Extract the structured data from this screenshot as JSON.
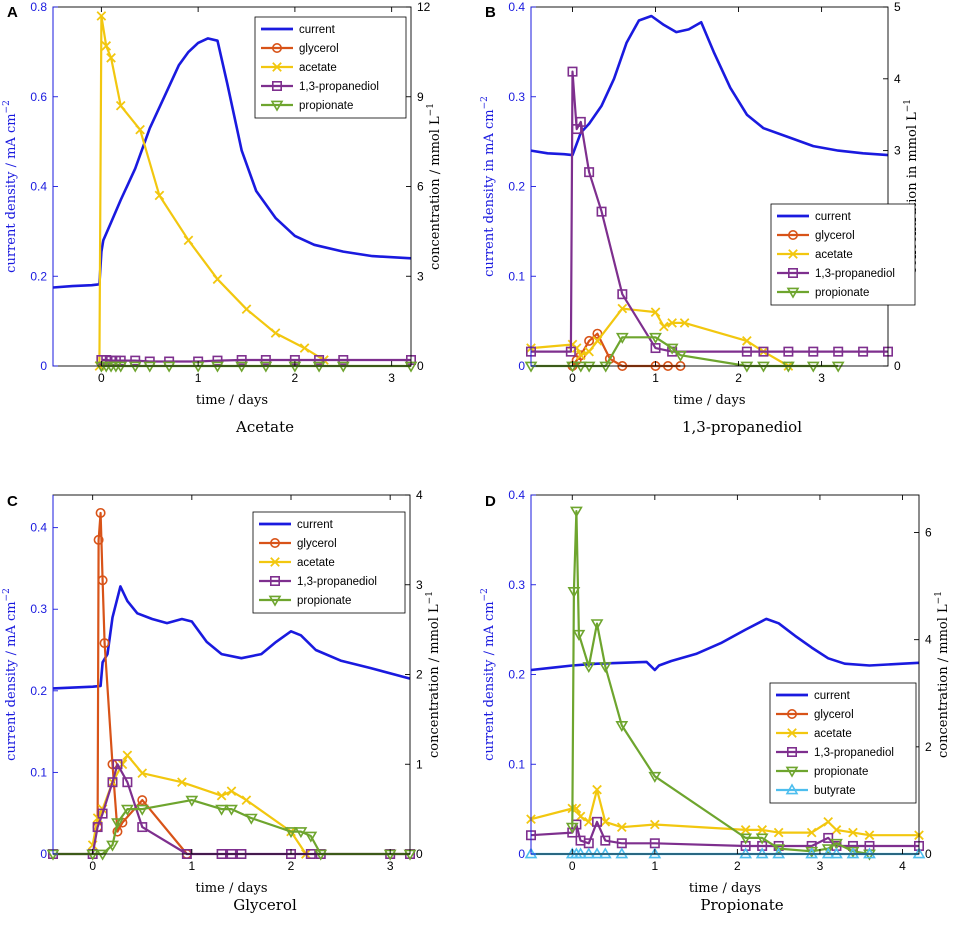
{
  "colors": {
    "current": "#1a1adf",
    "glycerol": "#d85318",
    "acetate": "#f2c70f",
    "propanediol": "#7e2f8e",
    "propionate": "#6ea52e",
    "butyrate": "#4dbeee",
    "axis_left": "#1a1adf",
    "axis_right": "#000000"
  },
  "chart_data": [
    {
      "panel": "A",
      "type": "line",
      "caption": "Acetate",
      "xlabel": "time / days",
      "ylabel_left": "current density / mA cm",
      "ylabel_left_sup": "−2",
      "ylabel_right": "concentration / mmol L",
      "ylabel_right_sup": "−1",
      "xlim": [
        -0.5,
        3.2
      ],
      "ylim_left": [
        0,
        0.8
      ],
      "ylim_right": [
        0,
        12
      ],
      "xticks": [
        0,
        1,
        2,
        3
      ],
      "yticks_left": [
        0,
        0.2,
        0.4,
        0.6,
        0.8
      ],
      "yticks_left_labels": [
        "0",
        "0.2",
        "0.4",
        "0.6",
        "0.8"
      ],
      "yticks_right": [
        0,
        3,
        6,
        9,
        12
      ],
      "yticks_right_labels": [
        "0",
        "3",
        "6",
        "9",
        "12"
      ],
      "legend": [
        "current",
        "glycerol",
        "acetate",
        "1,3-propanediol",
        "propionate"
      ],
      "legend_position": "top-right",
      "current": {
        "x": [
          -0.5,
          -0.3,
          -0.1,
          -0.02,
          0.0,
          0.02,
          0.1,
          0.2,
          0.35,
          0.5,
          0.65,
          0.8,
          0.9,
          1.0,
          1.1,
          1.2,
          1.3,
          1.45,
          1.6,
          1.8,
          2.0,
          2.2,
          2.5,
          2.8,
          3.2
        ],
        "y": [
          0.175,
          0.178,
          0.18,
          0.182,
          0.255,
          0.28,
          0.32,
          0.37,
          0.44,
          0.53,
          0.6,
          0.67,
          0.7,
          0.72,
          0.73,
          0.725,
          0.63,
          0.48,
          0.39,
          0.33,
          0.29,
          0.27,
          0.255,
          0.245,
          0.24
        ]
      },
      "series": [
        {
          "name": "acetate",
          "marker": "x",
          "x": [
            -0.02,
            0.0,
            0.05,
            0.1,
            0.2,
            0.4,
            0.6,
            0.9,
            1.2,
            1.5,
            1.8,
            2.1,
            2.3
          ],
          "y": [
            0,
            11.7,
            10.7,
            10.3,
            8.7,
            7.9,
            5.7,
            4.2,
            2.9,
            1.9,
            1.1,
            0.6,
            0.2
          ]
        },
        {
          "name": "1,3-propanediol",
          "marker": "square",
          "x": [
            0.0,
            0.05,
            0.1,
            0.15,
            0.2,
            0.35,
            0.5,
            0.7,
            1.0,
            1.2,
            1.45,
            1.7,
            2.0,
            2.25,
            2.5,
            3.2
          ],
          "y": [
            0.2,
            0.2,
            0.18,
            0.18,
            0.18,
            0.18,
            0.15,
            0.15,
            0.15,
            0.18,
            0.2,
            0.2,
            0.2,
            0.2,
            0.2,
            0.2
          ]
        },
        {
          "name": "propionate",
          "marker": "triangle-down",
          "x": [
            0.0,
            0.05,
            0.1,
            0.15,
            0.2,
            0.35,
            0.5,
            0.7,
            1.0,
            1.2,
            1.45,
            1.7,
            2.0,
            2.25,
            2.5,
            3.2
          ],
          "y": [
            0,
            0,
            0,
            0,
            0,
            0,
            0,
            0,
            0,
            0,
            0,
            0,
            0,
            0,
            0,
            0
          ]
        }
      ]
    },
    {
      "panel": "B",
      "type": "line",
      "caption": "1,3-propanediol",
      "xlabel": "time / days",
      "ylabel_left": "current density in mA cm",
      "ylabel_left_sup": "−2",
      "ylabel_right": "concentration in mmol L",
      "ylabel_right_sup": "−1",
      "xlim": [
        -0.5,
        3.8
      ],
      "ylim_left": [
        0,
        0.4
      ],
      "ylim_right": [
        0,
        5
      ],
      "xticks": [
        0,
        1,
        2,
        3
      ],
      "yticks_left": [
        0,
        0.1,
        0.2,
        0.3,
        0.4
      ],
      "yticks_left_labels": [
        "0",
        "0.1",
        "0.2",
        "0.3",
        "0.4"
      ],
      "yticks_right": [
        0,
        1,
        2,
        3,
        4,
        5
      ],
      "yticks_right_labels": [
        "0",
        "1",
        "2",
        "3",
        "4",
        "5"
      ],
      "legend": [
        "current",
        "glycerol",
        "acetate",
        "1,3-propanediol",
        "propionate"
      ],
      "legend_position": "middle-right",
      "current": {
        "x": [
          -0.5,
          -0.3,
          -0.1,
          0.0,
          0.1,
          0.2,
          0.35,
          0.5,
          0.65,
          0.8,
          0.95,
          1.1,
          1.25,
          1.4,
          1.55,
          1.7,
          1.9,
          2.1,
          2.3,
          2.6,
          2.9,
          3.2,
          3.5,
          3.8
        ],
        "y": [
          0.24,
          0.237,
          0.236,
          0.235,
          0.26,
          0.27,
          0.29,
          0.32,
          0.36,
          0.385,
          0.39,
          0.38,
          0.372,
          0.375,
          0.383,
          0.35,
          0.31,
          0.28,
          0.265,
          0.255,
          0.245,
          0.24,
          0.237,
          0.235
        ]
      },
      "series": [
        {
          "name": "glycerol",
          "marker": "circle",
          "x": [
            0.0,
            0.05,
            0.1,
            0.2,
            0.3,
            0.45,
            0.6,
            1.0,
            1.15,
            1.3
          ],
          "y": [
            0,
            0.08,
            0.15,
            0.35,
            0.45,
            0.1,
            0,
            0,
            0,
            0
          ]
        },
        {
          "name": "acetate",
          "marker": "x",
          "x": [
            -0.5,
            0.0,
            0.05,
            0.1,
            0.2,
            0.3,
            0.6,
            1.0,
            1.1,
            1.2,
            1.35,
            2.1,
            2.3,
            2.6
          ],
          "y": [
            0.25,
            0.3,
            0.25,
            0.15,
            0.2,
            0.35,
            0.8,
            0.75,
            0.55,
            0.6,
            0.6,
            0.35,
            0.2,
            0
          ]
        },
        {
          "name": "1,3-propanediol",
          "marker": "square",
          "x": [
            -0.5,
            -0.02,
            0.0,
            0.05,
            0.1,
            0.2,
            0.35,
            0.6,
            1.0,
            1.2,
            2.1,
            2.3,
            2.6,
            2.9,
            3.2,
            3.5,
            3.8
          ],
          "y": [
            0.2,
            0.2,
            4.1,
            3.3,
            3.4,
            2.7,
            2.15,
            1.0,
            0.25,
            0.2,
            0.2,
            0.2,
            0.2,
            0.2,
            0.2,
            0.2,
            0.2
          ]
        },
        {
          "name": "propionate",
          "marker": "triangle-down",
          "x": [
            -0.5,
            0.0,
            0.1,
            0.2,
            0.4,
            0.6,
            1.0,
            1.2,
            1.3,
            2.1,
            2.3,
            2.6,
            2.9,
            3.2
          ],
          "y": [
            0,
            0,
            0,
            0,
            0,
            0.4,
            0.4,
            0.25,
            0.15,
            0,
            0,
            0,
            0,
            0
          ]
        }
      ]
    },
    {
      "panel": "C",
      "type": "line",
      "caption": "Glycerol",
      "xlabel": "time / days",
      "ylabel_left": "current density / mA cm",
      "ylabel_left_sup": "−2",
      "ylabel_right": "concentration / mmol L",
      "ylabel_right_sup": "−1",
      "xlim": [
        -0.4,
        3.2
      ],
      "ylim_left": [
        0,
        0.44
      ],
      "ylim_right": [
        0,
        4
      ],
      "xticks": [
        0,
        1,
        2,
        3
      ],
      "yticks_left": [
        0,
        0.1,
        0.2,
        0.3,
        0.4
      ],
      "yticks_left_labels": [
        "0",
        "0.1",
        "0.2",
        "0.3",
        "0.4"
      ],
      "yticks_right": [
        0,
        1,
        2,
        3,
        4
      ],
      "yticks_right_labels": [
        "0",
        "1",
        "2",
        "3",
        "4"
      ],
      "legend": [
        "current",
        "glycerol",
        "acetate",
        "1,3-propanediol",
        "propionate"
      ],
      "legend_position": "top-right",
      "current": {
        "x": [
          -0.4,
          -0.2,
          0.0,
          0.08,
          0.1,
          0.15,
          0.2,
          0.28,
          0.35,
          0.45,
          0.6,
          0.75,
          0.9,
          1.0,
          1.15,
          1.3,
          1.5,
          1.7,
          1.85,
          2.0,
          2.1,
          2.25,
          2.5,
          2.8,
          3.2
        ],
        "y": [
          0.203,
          0.204,
          0.205,
          0.206,
          0.235,
          0.245,
          0.29,
          0.328,
          0.31,
          0.295,
          0.288,
          0.283,
          0.288,
          0.285,
          0.26,
          0.245,
          0.24,
          0.245,
          0.26,
          0.273,
          0.268,
          0.25,
          0.237,
          0.228,
          0.215
        ]
      },
      "series": [
        {
          "name": "glycerol",
          "marker": "circle",
          "x": [
            0.05,
            0.06,
            0.08,
            0.1,
            0.12,
            0.2,
            0.25,
            0.3,
            0.5,
            0.95
          ],
          "y": [
            0.3,
            3.5,
            3.8,
            3.05,
            2.35,
            1.0,
            0.25,
            0.35,
            0.6,
            0
          ]
        },
        {
          "name": "acetate",
          "marker": "x",
          "x": [
            0.0,
            0.05,
            0.1,
            0.2,
            0.3,
            0.35,
            0.5,
            0.9,
            1.3,
            1.4,
            1.55,
            2.0,
            2.15
          ],
          "y": [
            0.1,
            0.4,
            0.5,
            0.8,
            1.0,
            1.1,
            0.9,
            0.8,
            0.65,
            0.7,
            0.6,
            0.25,
            0
          ]
        },
        {
          "name": "1,3-propanediol",
          "marker": "square",
          "x": [
            -0.4,
            0.0,
            0.05,
            0.1,
            0.2,
            0.25,
            0.35,
            0.5,
            0.95,
            1.3,
            1.4,
            1.5,
            2.0,
            2.2,
            2.3,
            3.0,
            3.2
          ],
          "y": [
            0,
            0,
            0.3,
            0.45,
            0.8,
            1.0,
            0.8,
            0.3,
            0,
            0,
            0,
            0,
            0,
            0,
            0,
            0,
            0
          ]
        },
        {
          "name": "propionate",
          "marker": "triangle-down",
          "x": [
            -0.4,
            0.0,
            0.1,
            0.2,
            0.25,
            0.35,
            0.5,
            1.0,
            1.3,
            1.4,
            1.6,
            2.0,
            2.1,
            2.2,
            2.3,
            3.0,
            3.2
          ],
          "y": [
            0,
            0,
            0,
            0.1,
            0.35,
            0.5,
            0.5,
            0.6,
            0.5,
            0.5,
            0.4,
            0.25,
            0.25,
            0.2,
            0,
            0,
            0
          ]
        }
      ]
    },
    {
      "panel": "D",
      "type": "line",
      "caption": "Propionate",
      "xlabel": "time / days",
      "ylabel_left": "current density / mA cm",
      "ylabel_left_sup": "−2",
      "ylabel_right": "concentration / mmol L",
      "ylabel_right_sup": "−1",
      "xlim": [
        -0.5,
        4.2
      ],
      "ylim_left": [
        0,
        0.4
      ],
      "ylim_right": [
        0,
        6.7
      ],
      "xticks": [
        0,
        1,
        2,
        3,
        4
      ],
      "yticks_left": [
        0,
        0.1,
        0.2,
        0.3,
        0.4
      ],
      "yticks_left_labels": [
        "0",
        "0.1",
        "0.2",
        "0.3",
        "0.4"
      ],
      "yticks_right": [
        0,
        2,
        4,
        6
      ],
      "yticks_right_labels": [
        "0",
        "2",
        "4",
        "6"
      ],
      "legend": [
        "current",
        "glycerol",
        "acetate",
        "1,3-propanediol",
        "propionate",
        "butyrate"
      ],
      "legend_position": "middle-right",
      "current": {
        "x": [
          -0.5,
          -0.2,
          0.0,
          0.3,
          0.6,
          0.9,
          1.0,
          1.05,
          1.2,
          1.5,
          1.8,
          2.1,
          2.35,
          2.5,
          2.7,
          2.9,
          3.1,
          3.3,
          3.6,
          4.0,
          4.2
        ],
        "y": [
          0.205,
          0.208,
          0.21,
          0.212,
          0.213,
          0.214,
          0.205,
          0.21,
          0.215,
          0.223,
          0.235,
          0.25,
          0.262,
          0.257,
          0.243,
          0.23,
          0.218,
          0.212,
          0.21,
          0.212,
          0.213
        ]
      },
      "series": [
        {
          "name": "acetate",
          "marker": "x",
          "x": [
            -0.5,
            0.0,
            0.05,
            0.1,
            0.2,
            0.3,
            0.4,
            0.6,
            1.0,
            2.1,
            2.3,
            2.5,
            2.9,
            3.1,
            3.2,
            3.4,
            3.6,
            4.2
          ],
          "y": [
            0.65,
            0.85,
            0.85,
            0.7,
            0.6,
            1.2,
            0.6,
            0.5,
            0.55,
            0.45,
            0.45,
            0.4,
            0.4,
            0.6,
            0.45,
            0.4,
            0.35,
            0.35
          ]
        },
        {
          "name": "1,3-propanediol",
          "marker": "square",
          "x": [
            -0.5,
            0.0,
            0.05,
            0.1,
            0.2,
            0.3,
            0.4,
            0.6,
            1.0,
            2.1,
            2.3,
            2.5,
            2.9,
            3.1,
            3.2,
            3.4,
            3.6,
            4.2
          ],
          "y": [
            0.35,
            0.4,
            0.55,
            0.25,
            0.2,
            0.6,
            0.25,
            0.2,
            0.2,
            0.15,
            0.15,
            0.15,
            0.15,
            0.3,
            0.15,
            0.15,
            0.15,
            0.15
          ]
        },
        {
          "name": "propionate",
          "marker": "triangle-down",
          "x": [
            0.0,
            0.02,
            0.05,
            0.08,
            0.2,
            0.3,
            0.4,
            0.6,
            1.0,
            2.1,
            2.3,
            2.5,
            2.9,
            3.1,
            3.2,
            3.4,
            3.6
          ],
          "y": [
            0.5,
            4.9,
            6.4,
            4.1,
            3.5,
            4.3,
            3.5,
            2.4,
            1.45,
            0.3,
            0.3,
            0.1,
            0.05,
            0.1,
            0.2,
            0.05,
            0
          ]
        },
        {
          "name": "butyrate",
          "marker": "triangle-up",
          "x": [
            -0.5,
            0.0,
            0.05,
            0.1,
            0.2,
            0.3,
            0.4,
            0.6,
            1.0,
            2.1,
            2.3,
            2.5,
            2.9,
            3.1,
            3.2,
            3.4,
            3.6,
            4.2
          ],
          "y": [
            0,
            0,
            0,
            0,
            0,
            0,
            0,
            0,
            0,
            0,
            0,
            0,
            0,
            0,
            0,
            0,
            0,
            0
          ]
        }
      ]
    }
  ]
}
